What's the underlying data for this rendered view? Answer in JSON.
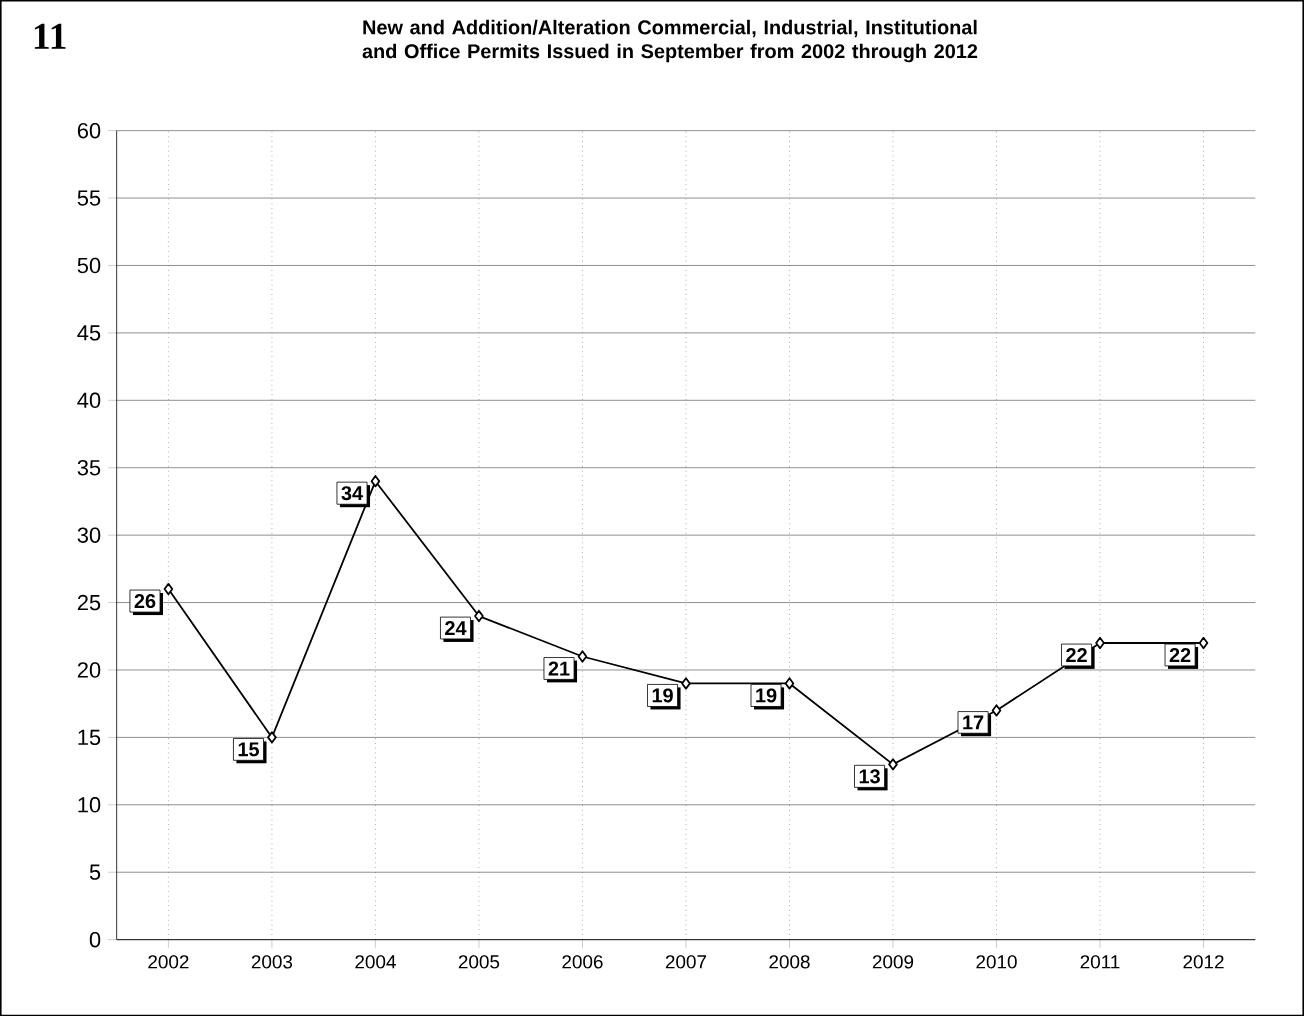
{
  "chart_data": {
    "type": "line",
    "title": "New and Addition/Alteration Commercial, Industrial, Institutional and Office Permits Issued in September from 2002 through 2012",
    "annotations": [
      "11"
    ],
    "categories": [
      "2002",
      "2003",
      "2004",
      "2005",
      "2006",
      "2007",
      "2008",
      "2009",
      "2010",
      "2011",
      "2012"
    ],
    "values": [
      26,
      15,
      34,
      24,
      21,
      19,
      19,
      13,
      17,
      22,
      22
    ],
    "color": "#000000",
    "marker": "diamond",
    "data_labels": true,
    "grid": true,
    "ylim": [
      0,
      60
    ],
    "yticks": [
      0,
      5,
      10,
      15,
      20,
      25,
      30,
      35,
      40,
      45,
      50,
      55,
      60
    ]
  }
}
